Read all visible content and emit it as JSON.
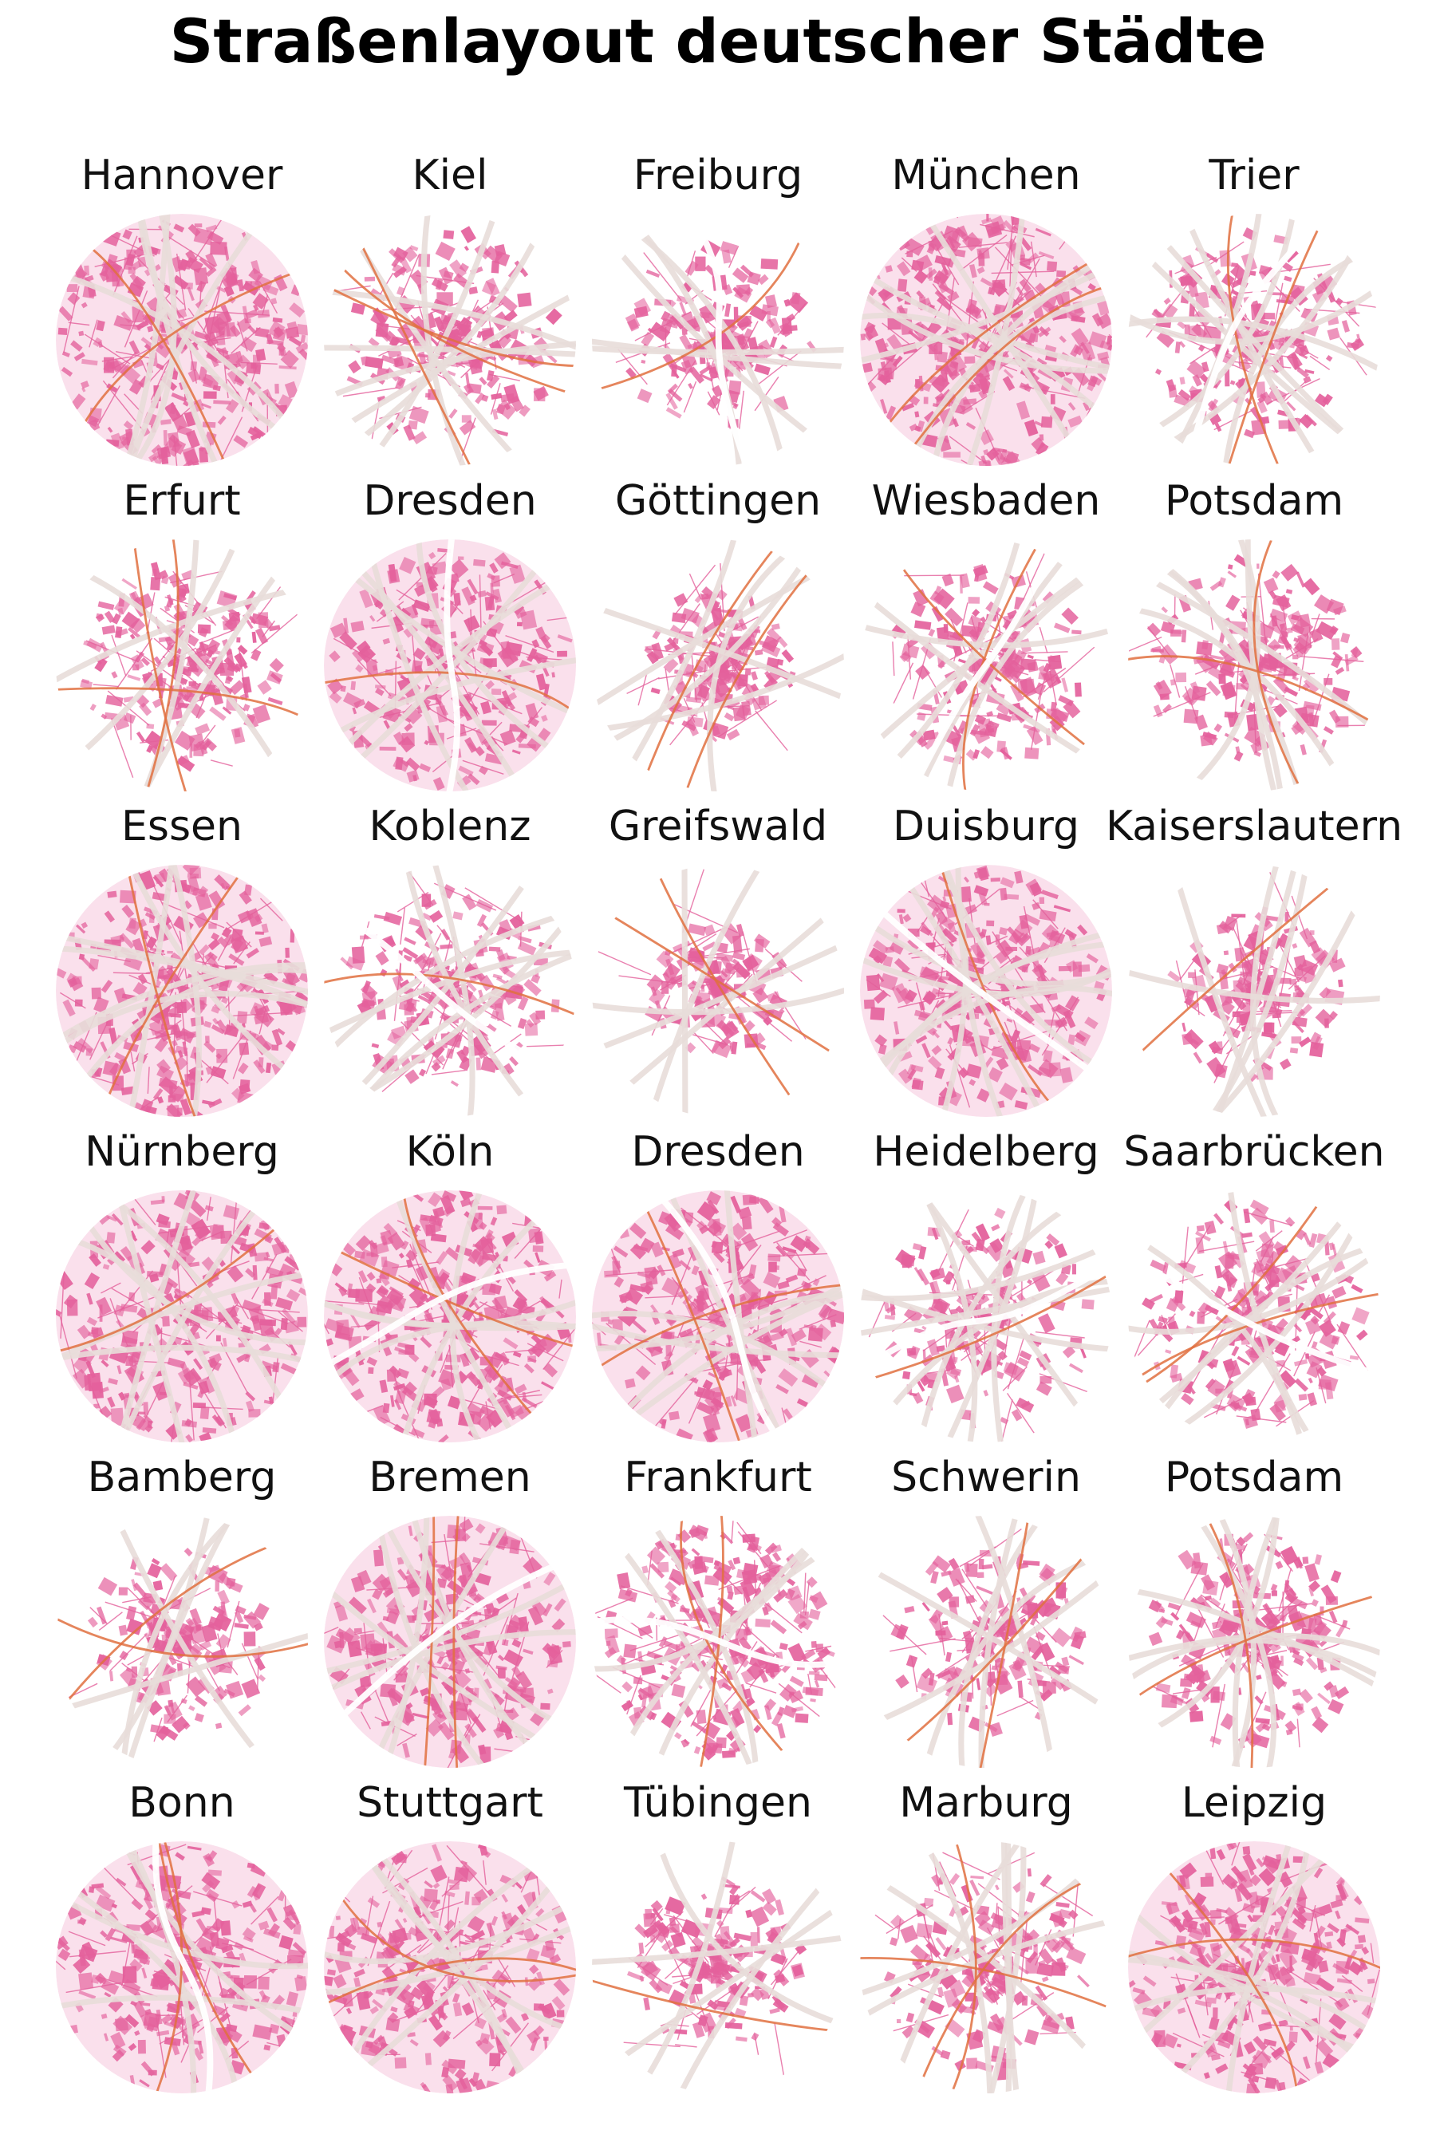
{
  "title": "Straßenlayout deutscher Städte",
  "colors": {
    "buildings": "#e4619c",
    "buildings_light": "#f2a7c8",
    "major_roads": "#e8ddd9",
    "highways": "#e07040"
  },
  "cities": [
    {
      "name": "Hannover",
      "density": 0.95,
      "fill": 1.0,
      "rivers": 0
    },
    {
      "name": "Kiel",
      "density": 0.55,
      "fill": 0.85,
      "rivers": 0
    },
    {
      "name": "Freiburg",
      "density": 0.45,
      "fill": 0.75,
      "rivers": 1
    },
    {
      "name": "München",
      "density": 1.0,
      "fill": 1.0,
      "rivers": 0
    },
    {
      "name": "Trier",
      "density": 0.55,
      "fill": 0.85,
      "rivers": 1
    },
    {
      "name": "Erfurt",
      "density": 0.6,
      "fill": 0.8,
      "rivers": 0
    },
    {
      "name": "Dresden",
      "density": 0.75,
      "fill": 0.95,
      "rivers": 1
    },
    {
      "name": "Göttingen",
      "density": 0.45,
      "fill": 0.6,
      "rivers": 0
    },
    {
      "name": "Wiesbaden",
      "density": 0.55,
      "fill": 0.8,
      "rivers": 1
    },
    {
      "name": "Potsdam",
      "density": 0.55,
      "fill": 0.85,
      "rivers": 0
    },
    {
      "name": "Essen",
      "density": 0.95,
      "fill": 1.0,
      "rivers": 0
    },
    {
      "name": "Koblenz",
      "density": 0.55,
      "fill": 0.85,
      "rivers": 1
    },
    {
      "name": "Greifswald",
      "density": 0.3,
      "fill": 0.55,
      "rivers": 0
    },
    {
      "name": "Duisburg",
      "density": 0.85,
      "fill": 0.95,
      "rivers": 1
    },
    {
      "name": "Kaiserslautern",
      "density": 0.45,
      "fill": 0.7,
      "rivers": 0
    },
    {
      "name": "Nürnberg",
      "density": 0.85,
      "fill": 1.0,
      "rivers": 0
    },
    {
      "name": "Köln",
      "density": 0.9,
      "fill": 1.0,
      "rivers": 1
    },
    {
      "name": "Dresden",
      "density": 0.8,
      "fill": 1.0,
      "rivers": 1
    },
    {
      "name": "Heidelberg",
      "density": 0.55,
      "fill": 0.85,
      "rivers": 1
    },
    {
      "name": "Saarbrücken",
      "density": 0.6,
      "fill": 0.9,
      "rivers": 1
    },
    {
      "name": "Bamberg",
      "density": 0.4,
      "fill": 0.75,
      "rivers": 0
    },
    {
      "name": "Bremen",
      "density": 0.8,
      "fill": 0.95,
      "rivers": 1
    },
    {
      "name": "Frankfurt",
      "density": 0.85,
      "fill": 0.9,
      "rivers": 1
    },
    {
      "name": "Schwerin",
      "density": 0.4,
      "fill": 0.75,
      "rivers": 0
    },
    {
      "name": "Potsdam",
      "density": 0.6,
      "fill": 0.85,
      "rivers": 0
    },
    {
      "name": "Bonn",
      "density": 0.8,
      "fill": 1.0,
      "rivers": 1
    },
    {
      "name": "Stuttgart",
      "density": 0.8,
      "fill": 1.0,
      "rivers": 0
    },
    {
      "name": "Tübingen",
      "density": 0.45,
      "fill": 0.7,
      "rivers": 0
    },
    {
      "name": "Marburg",
      "density": 0.5,
      "fill": 0.85,
      "rivers": 0
    },
    {
      "name": "Leipzig",
      "density": 0.9,
      "fill": 1.0,
      "rivers": 0
    }
  ]
}
